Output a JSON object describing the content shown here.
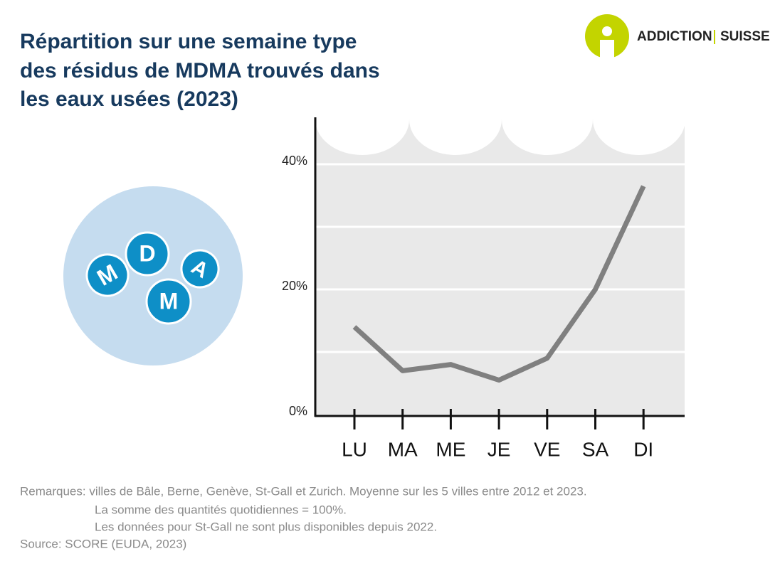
{
  "chart_data": {
    "type": "line",
    "title": [
      "Répartition sur une semaine type",
      "des résidus de MDMA trouvés dans",
      "les eaux usées (2023)"
    ],
    "categories": [
      "LU",
      "MA",
      "ME",
      "JE",
      "VE",
      "SA",
      "DI"
    ],
    "values": [
      14,
      7,
      8,
      5.5,
      9,
      20,
      36.5
    ],
    "color": "#808080",
    "ylim": [
      0,
      47.5
    ],
    "yticks": [
      {
        "value": 0,
        "label": "0%"
      },
      {
        "value": 20,
        "label": "20%"
      },
      {
        "value": 40,
        "label": "40%"
      }
    ],
    "grid_lines": [
      10,
      20,
      30,
      40
    ],
    "grid": true
  },
  "logo": {
    "left": "ADDICTION",
    "right": "SUISSE"
  },
  "illustration_letters": [
    "M",
    "D",
    "A",
    "M"
  ],
  "notes": [
    "Remarques: villes de Bâle, Berne, Genève, St-Gall et Zurich. Moyenne sur les 5 villes entre 2012 et 2023.",
    "La somme des quantités quotidiennes = 100%.",
    "Les données pour St-Gall ne sont plus disponibles depuis 2022.",
    "Source: SCORE (EUDA, 2023)"
  ]
}
